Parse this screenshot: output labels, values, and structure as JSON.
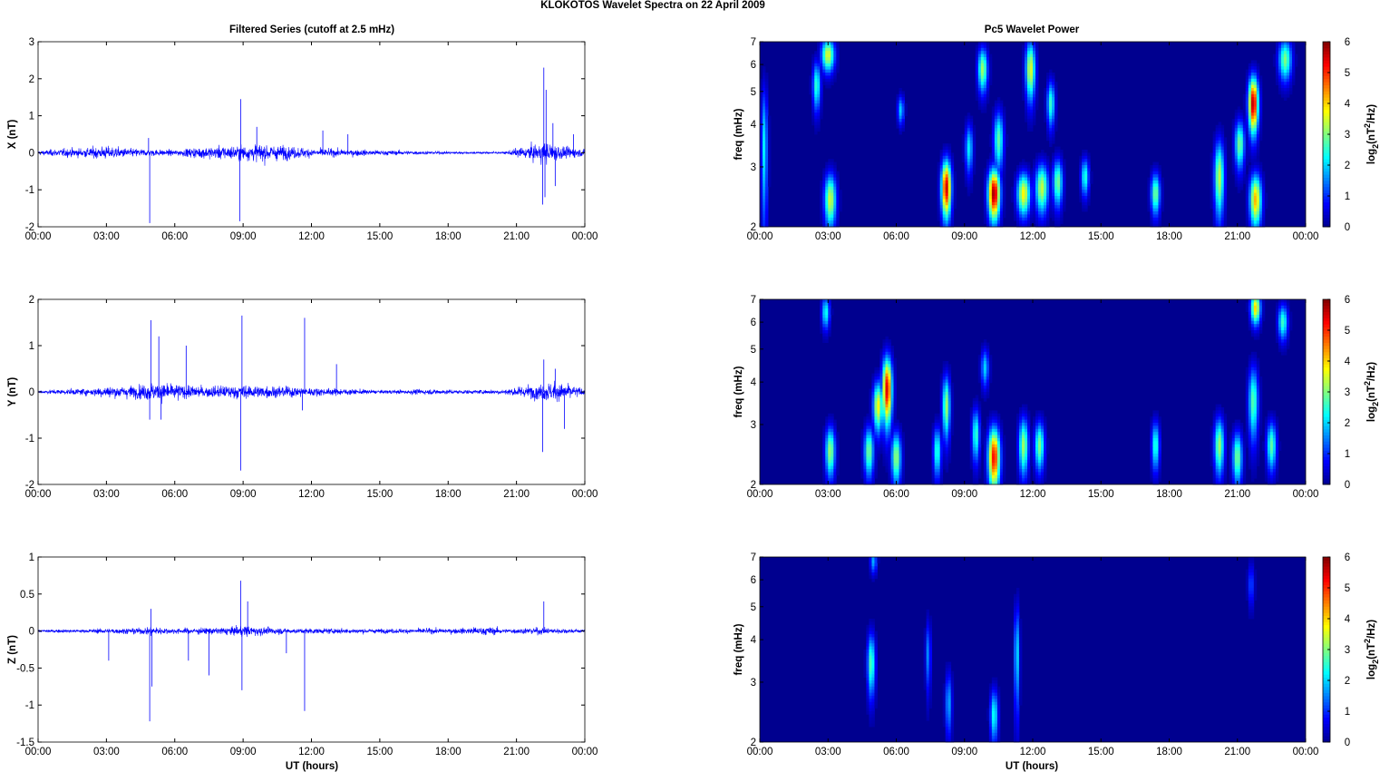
{
  "figure": {
    "title": "KLOKOTOS Wavelet Spectra on 22 April     2009",
    "left_title": "Filtered Series (cutoff at 2.5 mHz)",
    "right_title": "Pc5 Wavelet Power",
    "xlabel": "UT (hours)"
  },
  "chart_data": [
    {
      "type": "line",
      "name": "X component filtered series",
      "ylabel": "X (nT)",
      "ylim": [
        -2,
        3
      ],
      "yticks": [
        -2,
        -1,
        0,
        1,
        2,
        3
      ],
      "x_ticks": [
        "00:00",
        "03:00",
        "06:00",
        "09:00",
        "12:00",
        "15:00",
        "18:00",
        "21:00",
        "00:00"
      ],
      "xlim_hours": [
        0,
        24
      ],
      "envelope": [
        [
          0,
          0.1
        ],
        [
          1,
          0.18
        ],
        [
          2,
          0.22
        ],
        [
          3,
          0.3
        ],
        [
          4,
          0.2
        ],
        [
          6,
          0.12
        ],
        [
          7,
          0.25
        ],
        [
          9,
          0.35
        ],
        [
          10,
          0.4
        ],
        [
          12,
          0.2
        ],
        [
          15,
          0.12
        ],
        [
          17,
          0.08
        ],
        [
          19,
          0.05
        ],
        [
          20.5,
          0.05
        ],
        [
          21,
          0.2
        ],
        [
          21.7,
          0.35
        ],
        [
          22.3,
          0.5
        ],
        [
          23,
          0.3
        ],
        [
          24,
          0.15
        ]
      ],
      "spikes": [
        [
          4.9,
          -1.9
        ],
        [
          4.85,
          0.4
        ],
        [
          8.9,
          1.45
        ],
        [
          8.85,
          -1.85
        ],
        [
          9.6,
          0.7
        ],
        [
          12.5,
          0.6
        ],
        [
          13.6,
          0.5
        ],
        [
          22.2,
          2.3
        ],
        [
          22.15,
          -1.4
        ],
        [
          22.3,
          1.7
        ],
        [
          22.25,
          -1.2
        ],
        [
          22.6,
          0.8
        ],
        [
          22.7,
          -0.9
        ],
        [
          23.5,
          0.5
        ]
      ]
    },
    {
      "type": "heatmap",
      "name": "X wavelet power",
      "ylabel": "freq (mHz)",
      "yticks": [
        2,
        3,
        4,
        5,
        6,
        7
      ],
      "ylim": [
        2,
        7
      ],
      "yscale": "log",
      "x_ticks": [
        "00:00",
        "03:00",
        "06:00",
        "09:00",
        "12:00",
        "15:00",
        "18:00",
        "21:00",
        "00:00"
      ],
      "colorbar_label": "log2(nT^2/Hz)",
      "clim": [
        0,
        6
      ],
      "colorbar_ticks": [
        0,
        1,
        2,
        3,
        4,
        5,
        6
      ],
      "colormap": [
        "#00008f",
        "#0000ff",
        "#0080ff",
        "#00ffff",
        "#80ff80",
        "#ffff00",
        "#ff8000",
        "#ff0000",
        "#800000"
      ],
      "blobs": [
        [
          8.2,
          2.6,
          0.15,
          0.35,
          5.6
        ],
        [
          10.3,
          2.5,
          0.18,
          0.3,
          5.9
        ],
        [
          11.6,
          2.5,
          0.2,
          0.25,
          3.8
        ],
        [
          12.4,
          2.6,
          0.2,
          0.3,
          3.4
        ],
        [
          13.1,
          2.7,
          0.15,
          0.3,
          3.0
        ],
        [
          14.3,
          2.8,
          0.12,
          0.25,
          2.5
        ],
        [
          17.4,
          2.5,
          0.14,
          0.25,
          3.0
        ],
        [
          3.1,
          2.4,
          0.18,
          0.3,
          3.5
        ],
        [
          21.7,
          4.6,
          0.15,
          0.6,
          5.8
        ],
        [
          21.8,
          2.4,
          0.18,
          0.3,
          4.2
        ],
        [
          20.2,
          2.8,
          0.15,
          0.5,
          3.4
        ],
        [
          21.1,
          3.5,
          0.15,
          0.4,
          3.0
        ],
        [
          3.0,
          6.4,
          0.2,
          0.5,
          3.6
        ],
        [
          2.5,
          5.2,
          0.12,
          0.6,
          2.6
        ],
        [
          0.2,
          3.4,
          0.1,
          1.1,
          2.2
        ],
        [
          9.8,
          5.8,
          0.15,
          0.6,
          3.2
        ],
        [
          11.9,
          5.8,
          0.15,
          0.8,
          3.6
        ],
        [
          10.5,
          3.6,
          0.15,
          0.5,
          2.8
        ],
        [
          12.8,
          4.6,
          0.12,
          0.5,
          2.6
        ],
        [
          23.1,
          6.2,
          0.2,
          0.6,
          3.0
        ],
        [
          9.2,
          3.4,
          0.12,
          0.4,
          2.2
        ],
        [
          6.2,
          4.4,
          0.1,
          0.3,
          2.0
        ]
      ]
    },
    {
      "type": "line",
      "name": "Y component filtered series",
      "ylabel": "Y (nT)",
      "ylim": [
        -2,
        2
      ],
      "yticks": [
        -2,
        -1,
        0,
        1,
        2
      ],
      "x_ticks": [
        "00:00",
        "03:00",
        "06:00",
        "09:00",
        "12:00",
        "15:00",
        "18:00",
        "21:00",
        "00:00"
      ],
      "xlim_hours": [
        0,
        24
      ],
      "envelope": [
        [
          0,
          0.06
        ],
        [
          2,
          0.12
        ],
        [
          3,
          0.2
        ],
        [
          4.5,
          0.25
        ],
        [
          5,
          0.35
        ],
        [
          6,
          0.3
        ],
        [
          7,
          0.2
        ],
        [
          9,
          0.25
        ],
        [
          11,
          0.2
        ],
        [
          12,
          0.15
        ],
        [
          14,
          0.1
        ],
        [
          15,
          0.06
        ],
        [
          17,
          0.1
        ],
        [
          19,
          0.07
        ],
        [
          20.5,
          0.1
        ],
        [
          22,
          0.3
        ],
        [
          22.6,
          0.35
        ],
        [
          23.5,
          0.25
        ],
        [
          24,
          0.1
        ]
      ],
      "spikes": [
        [
          4.95,
          1.55
        ],
        [
          4.9,
          -0.6
        ],
        [
          5.3,
          1.2
        ],
        [
          5.4,
          -0.6
        ],
        [
          6.5,
          1.0
        ],
        [
          8.95,
          1.65
        ],
        [
          8.9,
          -1.7
        ],
        [
          11.7,
          1.6
        ],
        [
          11.6,
          -0.4
        ],
        [
          13.1,
          0.6
        ],
        [
          22.2,
          0.7
        ],
        [
          22.15,
          -1.3
        ],
        [
          23.1,
          -0.8
        ],
        [
          22.7,
          0.5
        ]
      ]
    },
    {
      "type": "heatmap",
      "name": "Y wavelet power",
      "ylabel": "freq (mHz)",
      "yticks": [
        2,
        3,
        4,
        5,
        6,
        7
      ],
      "ylim": [
        2,
        7
      ],
      "yscale": "log",
      "x_ticks": [
        "00:00",
        "03:00",
        "06:00",
        "09:00",
        "12:00",
        "15:00",
        "18:00",
        "21:00",
        "00:00"
      ],
      "colorbar_label": "log2(nT^2/Hz)",
      "clim": [
        0,
        6
      ],
      "colorbar_ticks": [
        0,
        1,
        2,
        3,
        4,
        5,
        6
      ],
      "colormap": [
        "#00008f",
        "#0000ff",
        "#0080ff",
        "#00ffff",
        "#80ff80",
        "#ffff00",
        "#ff8000",
        "#ff0000",
        "#800000"
      ],
      "blobs": [
        [
          5.6,
          3.8,
          0.15,
          0.6,
          5.5
        ],
        [
          5.2,
          3.4,
          0.15,
          0.4,
          3.8
        ],
        [
          4.8,
          2.5,
          0.15,
          0.3,
          3.0
        ],
        [
          6.0,
          2.4,
          0.15,
          0.3,
          3.2
        ],
        [
          3.1,
          2.5,
          0.15,
          0.3,
          3.2
        ],
        [
          10.3,
          2.4,
          0.18,
          0.35,
          5.3
        ],
        [
          11.6,
          2.6,
          0.15,
          0.35,
          3.2
        ],
        [
          12.3,
          2.6,
          0.15,
          0.3,
          3.0
        ],
        [
          8.2,
          3.4,
          0.12,
          0.5,
          3.2
        ],
        [
          9.5,
          2.8,
          0.12,
          0.35,
          2.6
        ],
        [
          7.8,
          2.5,
          0.12,
          0.3,
          2.6
        ],
        [
          2.9,
          6.4,
          0.12,
          0.5,
          2.4
        ],
        [
          21.8,
          6.6,
          0.15,
          0.5,
          4.0
        ],
        [
          20.2,
          2.6,
          0.15,
          0.35,
          3.2
        ],
        [
          21.0,
          2.4,
          0.15,
          0.3,
          3.0
        ],
        [
          22.5,
          2.6,
          0.15,
          0.3,
          2.8
        ],
        [
          21.7,
          3.5,
          0.15,
          0.6,
          2.8
        ],
        [
          17.4,
          2.6,
          0.12,
          0.3,
          2.6
        ],
        [
          23.0,
          6.0,
          0.15,
          0.5,
          2.6
        ],
        [
          9.9,
          4.4,
          0.12,
          0.4,
          2.0
        ]
      ]
    },
    {
      "type": "line",
      "name": "Z component filtered series",
      "ylabel": "Z (nT)",
      "ylim": [
        -1.5,
        1
      ],
      "yticks": [
        -1.5,
        -1,
        -0.5,
        0,
        0.5,
        1
      ],
      "x_ticks": [
        "00:00",
        "03:00",
        "06:00",
        "09:00",
        "12:00",
        "15:00",
        "18:00",
        "21:00",
        "00:00"
      ],
      "xlim_hours": [
        0,
        24
      ],
      "envelope": [
        [
          0,
          0.03
        ],
        [
          2,
          0.04
        ],
        [
          3,
          0.06
        ],
        [
          4.5,
          0.07
        ],
        [
          5,
          0.1
        ],
        [
          6,
          0.06
        ],
        [
          8,
          0.08
        ],
        [
          9,
          0.12
        ],
        [
          11,
          0.06
        ],
        [
          13,
          0.06
        ],
        [
          15,
          0.05
        ],
        [
          17,
          0.06
        ],
        [
          18.5,
          0.06
        ],
        [
          19,
          0.09
        ],
        [
          20,
          0.09
        ],
        [
          20.5,
          0.05
        ],
        [
          22,
          0.08
        ],
        [
          24,
          0.04
        ]
      ],
      "spikes": [
        [
          4.95,
          0.3
        ],
        [
          4.9,
          -1.22
        ],
        [
          5.0,
          -0.75
        ],
        [
          6.6,
          -0.4
        ],
        [
          7.5,
          -0.6
        ],
        [
          8.9,
          0.68
        ],
        [
          8.95,
          -0.8
        ],
        [
          9.2,
          0.4
        ],
        [
          11.7,
          -1.08
        ],
        [
          22.2,
          0.4
        ],
        [
          3.1,
          -0.4
        ],
        [
          10.9,
          -0.3
        ]
      ]
    },
    {
      "type": "heatmap",
      "name": "Z wavelet power",
      "ylabel": "freq (mHz)",
      "yticks": [
        2,
        3,
        4,
        5,
        6,
        7
      ],
      "ylim": [
        2,
        7
      ],
      "yscale": "log",
      "x_ticks": [
        "00:00",
        "03:00",
        "06:00",
        "09:00",
        "12:00",
        "15:00",
        "18:00",
        "21:00",
        "00:00"
      ],
      "colorbar_label": "log2(nT^2/Hz)",
      "clim": [
        0,
        6
      ],
      "colorbar_ticks": [
        0,
        1,
        2,
        3,
        4,
        5,
        6
      ],
      "colormap": [
        "#00008f",
        "#0000ff",
        "#0080ff",
        "#00ffff",
        "#80ff80",
        "#ffff00",
        "#ff8000",
        "#ff0000",
        "#800000"
      ],
      "blobs": [
        [
          4.9,
          3.4,
          0.12,
          0.5,
          2.8
        ],
        [
          10.3,
          2.4,
          0.12,
          0.3,
          2.4
        ],
        [
          11.3,
          3.6,
          0.08,
          0.9,
          2.2
        ],
        [
          7.4,
          3.6,
          0.08,
          0.6,
          1.6
        ],
        [
          8.3,
          2.6,
          0.1,
          0.4,
          1.8
        ],
        [
          5.0,
          6.8,
          0.1,
          0.4,
          1.8
        ],
        [
          21.6,
          5.8,
          0.1,
          0.6,
          1.2
        ]
      ]
    }
  ]
}
